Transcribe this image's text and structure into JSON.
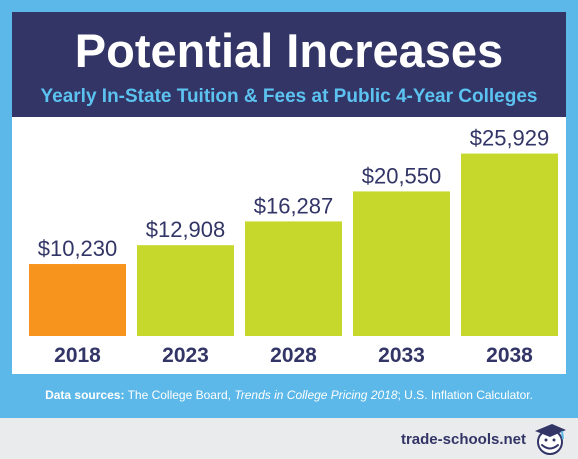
{
  "header": {
    "title": "Potential Increases",
    "subtitle": "Yearly In-State Tuition & Fees at Public 4-Year Colleges"
  },
  "chart_data": {
    "type": "bar",
    "title": "Potential Increases",
    "subtitle": "Yearly In-State Tuition & Fees at Public 4-Year Colleges",
    "categories": [
      "2018",
      "2023",
      "2028",
      "2033",
      "2038"
    ],
    "values": [
      10230,
      12908,
      16287,
      20550,
      25929
    ],
    "value_labels": [
      "$10,230",
      "$12,908",
      "$16,287",
      "$20,550",
      "$25,929"
    ],
    "xlabel": "",
    "ylabel": "",
    "ylim": [
      0,
      28000
    ],
    "grid": false,
    "legend": "none",
    "colors": {
      "highlight": "#f7941d",
      "default": "#c5d82b",
      "label_text": "#323566"
    },
    "highlight_index": 0
  },
  "source": {
    "prefix": "Data sources:",
    "text1": " The College Board, ",
    "title_italic": "Trends in College Pricing 2018",
    "text2": "; U.S. Inflation Calculator."
  },
  "footer": {
    "brand": "trade-schools.net",
    "logo_icon": "graduation-cap-face-icon"
  }
}
